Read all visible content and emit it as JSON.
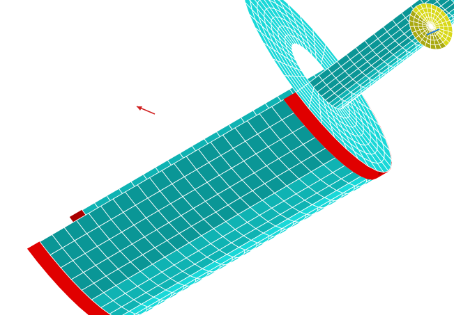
{
  "viewport": {
    "background": "#ffffff"
  },
  "model": {
    "description_icon": "cylinder-mesh-icon",
    "colors": {
      "surface": "#19d8d8",
      "surface_dark": "#0fb3b3",
      "surface_shadow": "#0a9696",
      "mesh_lines": "#ffffff",
      "constraint_band": "#e00000",
      "constraint_band_dark": "#a80000",
      "end_face": "#d8d818",
      "end_face_dark": "#a8a810",
      "marker_arrow": "#d02020",
      "axis_line": "#1a7ad8"
    },
    "mesh": {
      "large_cylinder_long_divisions": 22,
      "large_cylinder_circ_divisions": 22,
      "small_cylinder_long_divisions": 14,
      "small_cylinder_circ_divisions": 20,
      "shoulder_radial_divisions": 7
    }
  }
}
